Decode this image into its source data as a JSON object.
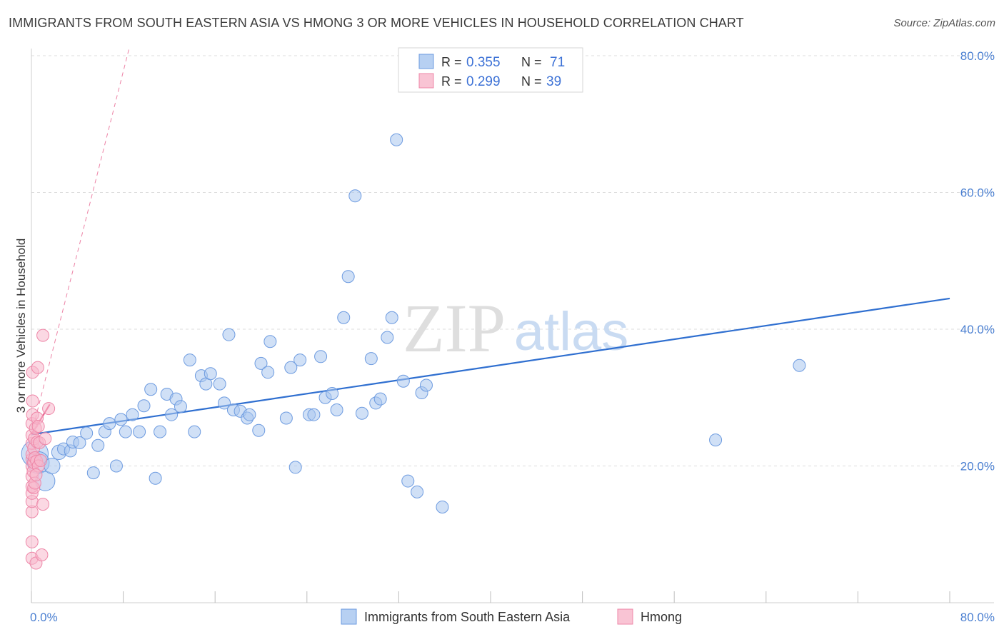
{
  "title": "IMMIGRANTS FROM SOUTH EASTERN ASIA VS HMONG 3 OR MORE VEHICLES IN HOUSEHOLD CORRELATION CHART",
  "source": "Source: ZipAtlas.com",
  "watermark": {
    "zip": "ZIP",
    "atlas": "atlas"
  },
  "legend_top": {
    "rows": [
      {
        "r_label": "R =",
        "r_value": "0.355",
        "n_label": "N =",
        "n_value": "71"
      },
      {
        "r_label": "R =",
        "r_value": "0.299",
        "n_label": "N =",
        "n_value": "39"
      }
    ]
  },
  "colors": {
    "blue_fill": "#a9c6ee",
    "blue_stroke": "#6d9be0",
    "blue_line": "#2f6fd0",
    "pink_fill": "#f7b8cc",
    "pink_stroke": "#ee87a8",
    "pink_line": "#e8638f",
    "grid": "#dcdcdc",
    "axis_text": "#4a7fd1"
  },
  "chart_data": {
    "type": "scatter",
    "title": "IMMIGRANTS FROM SOUTH EASTERN ASIA VS HMONG 3 OR MORE VEHICLES IN HOUSEHOLD CORRELATION CHART",
    "xlabel": "",
    "ylabel": "3 or more Vehicles in Household",
    "xlim": [
      0,
      80
    ],
    "ylim": [
      0,
      80
    ],
    "x_ticks": [
      0,
      8,
      16,
      24,
      32,
      40,
      48,
      56,
      64,
      72,
      80
    ],
    "x_tick_labels": {
      "left": "0.0%",
      "right": "80.0%"
    },
    "y_ticks": [
      {
        "value": 20,
        "label": "20.0%"
      },
      {
        "value": 40,
        "label": "40.0%"
      },
      {
        "value": 60,
        "label": "60.0%"
      },
      {
        "value": 80,
        "label": "80.0%"
      }
    ],
    "legend_bottom": [
      "Immigrants from South Eastern Asia",
      "Hmong"
    ],
    "series": [
      {
        "name": "Immigrants from South Eastern Asia",
        "color": "#a9c6ee",
        "points": [
          [
            0.3,
            21.8,
            2.2
          ],
          [
            0.6,
            20.5,
            1.8
          ],
          [
            1.2,
            17.8,
            1.6
          ],
          [
            1.8,
            20.0,
            1.3
          ],
          [
            2.4,
            22.0,
            1.2
          ],
          [
            2.8,
            22.5,
            1
          ],
          [
            3.4,
            22.2,
            1
          ],
          [
            3.6,
            23.5,
            1
          ],
          [
            4.2,
            23.4,
            1
          ],
          [
            4.8,
            24.8,
            1
          ],
          [
            5.4,
            19.0,
            1
          ],
          [
            5.8,
            23.0,
            1
          ],
          [
            6.4,
            25.0,
            1
          ],
          [
            6.8,
            26.2,
            1
          ],
          [
            7.4,
            20.0,
            1
          ],
          [
            7.8,
            26.8,
            1
          ],
          [
            8.2,
            25.0,
            1
          ],
          [
            8.8,
            27.5,
            1
          ],
          [
            9.4,
            25.0,
            1
          ],
          [
            9.8,
            28.8,
            1
          ],
          [
            10.4,
            31.2,
            1
          ],
          [
            10.8,
            18.2,
            1
          ],
          [
            11.2,
            25.0,
            1
          ],
          [
            11.8,
            30.5,
            1
          ],
          [
            12.2,
            27.5,
            1
          ],
          [
            12.6,
            29.8,
            1
          ],
          [
            13.0,
            28.7,
            1
          ],
          [
            13.8,
            35.5,
            1
          ],
          [
            14.2,
            25.0,
            1
          ],
          [
            14.8,
            33.2,
            1
          ],
          [
            15.2,
            32.0,
            1
          ],
          [
            15.6,
            33.5,
            1
          ],
          [
            16.4,
            32.0,
            1
          ],
          [
            16.8,
            29.2,
            1
          ],
          [
            17.2,
            39.2,
            1
          ],
          [
            17.6,
            28.2,
            1
          ],
          [
            18.2,
            28.0,
            1
          ],
          [
            18.8,
            27.0,
            1
          ],
          [
            19.0,
            27.5,
            1
          ],
          [
            19.8,
            25.2,
            1
          ],
          [
            20.0,
            35.0,
            1
          ],
          [
            20.6,
            33.7,
            1
          ],
          [
            20.8,
            38.2,
            1
          ],
          [
            22.2,
            27.0,
            1
          ],
          [
            22.6,
            34.4,
            1
          ],
          [
            23.0,
            19.8,
            1
          ],
          [
            23.4,
            35.5,
            1
          ],
          [
            24.2,
            27.5,
            1
          ],
          [
            24.6,
            27.5,
            1
          ],
          [
            25.2,
            36.0,
            1
          ],
          [
            25.6,
            30.0,
            1
          ],
          [
            26.2,
            30.6,
            1
          ],
          [
            26.6,
            28.2,
            1
          ],
          [
            27.2,
            41.7,
            1
          ],
          [
            27.6,
            47.7,
            1
          ],
          [
            28.2,
            59.5,
            1
          ],
          [
            28.8,
            27.7,
            1
          ],
          [
            29.6,
            35.7,
            1
          ],
          [
            30.0,
            29.2,
            1
          ],
          [
            30.4,
            29.8,
            1
          ],
          [
            31.0,
            38.8,
            1
          ],
          [
            31.4,
            41.7,
            1
          ],
          [
            31.8,
            67.7,
            1
          ],
          [
            32.4,
            32.4,
            1
          ],
          [
            32.8,
            17.8,
            1
          ],
          [
            33.6,
            16.2,
            1
          ],
          [
            34.0,
            30.7,
            1
          ],
          [
            34.4,
            31.8,
            1
          ],
          [
            35.8,
            14.0,
            1
          ],
          [
            59.6,
            23.8,
            1
          ],
          [
            66.9,
            34.7,
            1
          ]
        ],
        "trend": {
          "x": [
            0,
            80
          ],
          "y": [
            24.6,
            44.5
          ]
        }
      },
      {
        "name": "Hmong",
        "color": "#f7b8cc",
        "points": [
          [
            0.05,
            6.5
          ],
          [
            0.05,
            8.9
          ],
          [
            0.05,
            13.3
          ],
          [
            0.05,
            14.8
          ],
          [
            0.05,
            16.0
          ],
          [
            0.05,
            17.0
          ],
          [
            0.05,
            18.5
          ],
          [
            0.05,
            20.0
          ],
          [
            0.05,
            21.0
          ],
          [
            0.05,
            21.7
          ],
          [
            0.05,
            23.3
          ],
          [
            0.05,
            24.5
          ],
          [
            0.05,
            26.2
          ],
          [
            0.1,
            27.5
          ],
          [
            0.1,
            29.5
          ],
          [
            0.1,
            33.7
          ],
          [
            0.15,
            19.2
          ],
          [
            0.2,
            16.8
          ],
          [
            0.2,
            20.5
          ],
          [
            0.2,
            22.6
          ],
          [
            0.25,
            24.0
          ],
          [
            0.3,
            17.5
          ],
          [
            0.3,
            21.2
          ],
          [
            0.35,
            25.5
          ],
          [
            0.4,
            5.8
          ],
          [
            0.45,
            20.7
          ],
          [
            0.5,
            23.5
          ],
          [
            0.5,
            27.0
          ],
          [
            0.55,
            34.4
          ],
          [
            0.6,
            20.0
          ],
          [
            0.6,
            25.8
          ],
          [
            0.7,
            23.4
          ],
          [
            0.8,
            20.8
          ],
          [
            0.9,
            7.0
          ],
          [
            1.0,
            14.4
          ],
          [
            1.0,
            39.1
          ],
          [
            1.2,
            24.0
          ],
          [
            1.5,
            28.4
          ],
          [
            0.4,
            18.7
          ]
        ],
        "trend": {
          "x": [
            0,
            1.6
          ],
          "y": [
            24.6,
            29.0
          ]
        },
        "trend_extended": {
          "x": [
            0,
            8.5
          ],
          "y": [
            24.6,
            81.0
          ]
        }
      }
    ]
  }
}
